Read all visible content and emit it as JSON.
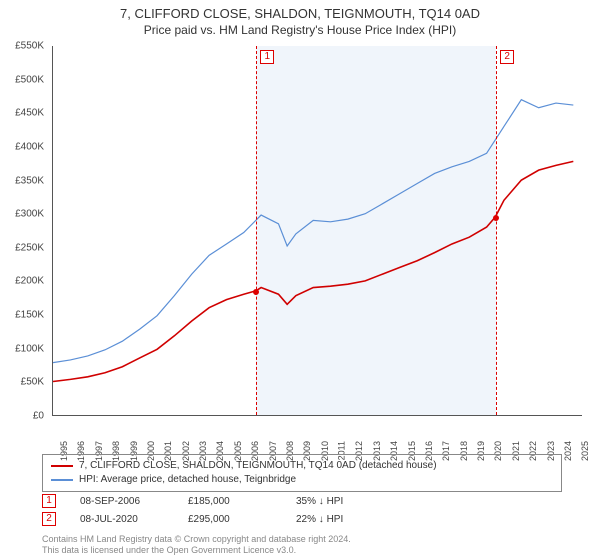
{
  "title": "7, CLIFFORD CLOSE, SHALDON, TEIGNMOUTH, TQ14 0AD",
  "subtitle": "Price paid vs. HM Land Registry's House Price Index (HPI)",
  "chart": {
    "type": "line",
    "background_color": "#ffffff",
    "grid_color": "#e0e0e0",
    "axis_color": "#555555",
    "ylim": [
      0,
      550000
    ],
    "ytick_step": 50000,
    "yticks": [
      "£0",
      "£50K",
      "£100K",
      "£150K",
      "£200K",
      "£250K",
      "£300K",
      "£350K",
      "£400K",
      "£450K",
      "£500K",
      "£550K"
    ],
    "x_years": [
      1995,
      1996,
      1997,
      1998,
      1999,
      2000,
      2001,
      2002,
      2003,
      2004,
      2005,
      2006,
      2007,
      2008,
      2009,
      2010,
      2011,
      2012,
      2013,
      2014,
      2015,
      2016,
      2017,
      2018,
      2019,
      2020,
      2021,
      2022,
      2023,
      2024,
      2025
    ],
    "xlim": [
      1995,
      2025.5
    ],
    "shade_band": {
      "x_start": 2006.7,
      "x_end": 2020.5,
      "fill": "#4682c8",
      "opacity": 0.08
    },
    "markers": [
      {
        "id": "1",
        "label": "1",
        "x": 2006.7,
        "date": "08-SEP-2006",
        "price": "£185,000",
        "delta": "35% ↓ HPI",
        "value": 185000
      },
      {
        "id": "2",
        "label": "2",
        "x": 2020.5,
        "date": "08-JUL-2020",
        "price": "£295,000",
        "delta": "22% ↓ HPI",
        "value": 295000
      }
    ],
    "marker_line_color": "#d00000",
    "series": [
      {
        "name": "property",
        "label": "7, CLIFFORD CLOSE, SHALDON, TEIGNMOUTH, TQ14 0AD (detached house)",
        "color": "#d00000",
        "line_width": 1.6,
        "points": [
          [
            1995,
            50000
          ],
          [
            1996,
            53000
          ],
          [
            1997,
            57000
          ],
          [
            1998,
            63000
          ],
          [
            1999,
            72000
          ],
          [
            2000,
            85000
          ],
          [
            2001,
            98000
          ],
          [
            2002,
            118000
          ],
          [
            2003,
            140000
          ],
          [
            2004,
            160000
          ],
          [
            2005,
            172000
          ],
          [
            2006,
            180000
          ],
          [
            2006.7,
            185000
          ],
          [
            2007,
            190000
          ],
          [
            2008,
            180000
          ],
          [
            2008.5,
            165000
          ],
          [
            2009,
            178000
          ],
          [
            2010,
            190000
          ],
          [
            2011,
            192000
          ],
          [
            2012,
            195000
          ],
          [
            2013,
            200000
          ],
          [
            2014,
            210000
          ],
          [
            2015,
            220000
          ],
          [
            2016,
            230000
          ],
          [
            2017,
            242000
          ],
          [
            2018,
            255000
          ],
          [
            2019,
            265000
          ],
          [
            2020,
            280000
          ],
          [
            2020.5,
            295000
          ],
          [
            2021,
            320000
          ],
          [
            2022,
            350000
          ],
          [
            2023,
            365000
          ],
          [
            2024,
            372000
          ],
          [
            2025,
            378000
          ]
        ]
      },
      {
        "name": "hpi",
        "label": "HPI: Average price, detached house, Teignbridge",
        "color": "#5b8fd6",
        "line_width": 1.2,
        "points": [
          [
            1995,
            78000
          ],
          [
            1996,
            82000
          ],
          [
            1997,
            88000
          ],
          [
            1998,
            97000
          ],
          [
            1999,
            110000
          ],
          [
            2000,
            128000
          ],
          [
            2001,
            148000
          ],
          [
            2002,
            178000
          ],
          [
            2003,
            210000
          ],
          [
            2004,
            238000
          ],
          [
            2005,
            255000
          ],
          [
            2006,
            272000
          ],
          [
            2007,
            298000
          ],
          [
            2008,
            285000
          ],
          [
            2008.5,
            252000
          ],
          [
            2009,
            270000
          ],
          [
            2010,
            290000
          ],
          [
            2011,
            288000
          ],
          [
            2012,
            292000
          ],
          [
            2013,
            300000
          ],
          [
            2014,
            315000
          ],
          [
            2015,
            330000
          ],
          [
            2016,
            345000
          ],
          [
            2017,
            360000
          ],
          [
            2018,
            370000
          ],
          [
            2019,
            378000
          ],
          [
            2020,
            390000
          ],
          [
            2021,
            430000
          ],
          [
            2022,
            470000
          ],
          [
            2023,
            458000
          ],
          [
            2024,
            465000
          ],
          [
            2025,
            462000
          ]
        ]
      }
    ]
  },
  "legend": {
    "border_color": "#888888",
    "items": [
      {
        "color": "#d00000",
        "text": "7, CLIFFORD CLOSE, SHALDON, TEIGNMOUTH, TQ14 0AD (detached house)"
      },
      {
        "color": "#5b8fd6",
        "text": "HPI: Average price, detached house, Teignbridge"
      }
    ]
  },
  "footnote": {
    "line1": "Contains HM Land Registry data © Crown copyright and database right 2024.",
    "line2": "This data is licensed under the Open Government Licence v3.0."
  }
}
